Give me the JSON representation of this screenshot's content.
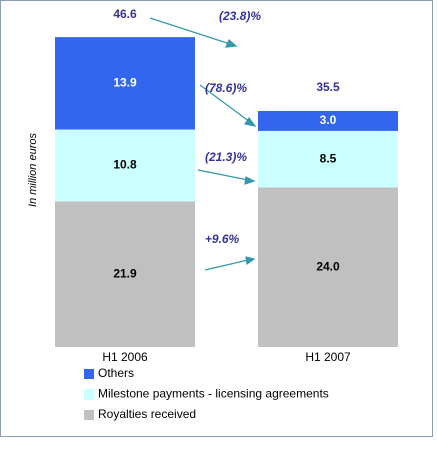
{
  "chart_data": {
    "type": "stacked_bar",
    "ylabel": "In million euros",
    "categories": [
      "H1 2006",
      "H1 2007"
    ],
    "series": [
      {
        "name": "Royalties received",
        "color": "#c0c0c0",
        "label_color": "#000000",
        "values": [
          21.9,
          24.0
        ],
        "value_labels": [
          "21.9",
          "24.0"
        ]
      },
      {
        "name": "Milestone payments - licensing agreements",
        "color": "#ccffff",
        "label_color": "#000000",
        "values": [
          10.8,
          8.5
        ],
        "value_labels": [
          "10.8",
          "8.5"
        ]
      },
      {
        "name": "Others",
        "color": "#3366ee",
        "label_color": "#ffffff",
        "values": [
          13.9,
          3.0
        ],
        "value_labels": [
          "13.9",
          "3.0"
        ]
      }
    ],
    "totals": [
      46.6,
      35.5
    ],
    "annotations": [
      "(23.8)%",
      "(21.3)%",
      "+9.6%",
      "(78.6)%"
    ],
    "ylim": [
      0,
      50
    ],
    "legend": "bottom"
  }
}
